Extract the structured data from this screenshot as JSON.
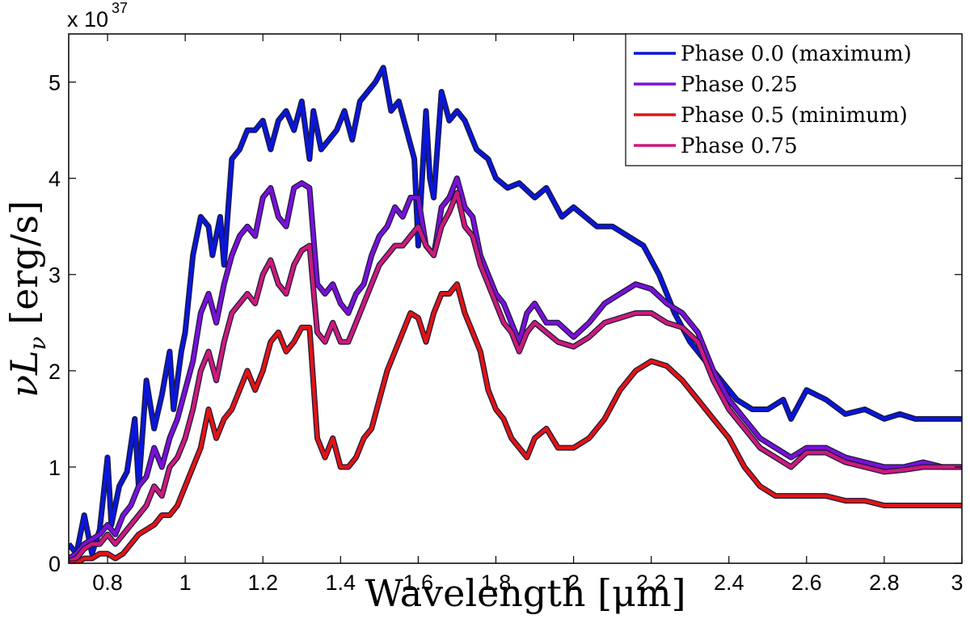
{
  "chart_data": {
    "type": "line",
    "xlabel": "Wavelength [μm]",
    "ylabel": "νL_ν [erg/s]",
    "ylabel_parts": {
      "main": "νL",
      "sub": "ν",
      "unit": "[erg/s]"
    },
    "xlim": [
      0.7,
      3.0
    ],
    "ylim": [
      0,
      5.5
    ],
    "y_multiplier": {
      "base": "x 10",
      "exponent": "37"
    },
    "xticks": [
      0.8,
      1,
      1.2,
      1.4,
      1.6,
      1.8,
      2,
      2.2,
      2.4,
      2.6,
      2.8,
      3
    ],
    "xtick_labels": [
      "0.8",
      "1",
      "1.2",
      "1.4",
      "1.6",
      "1.8",
      "2",
      "2.2",
      "2.4",
      "2.6",
      "2.8",
      "3"
    ],
    "yticks": [
      0,
      1,
      2,
      3,
      4,
      5
    ],
    "ytick_labels": [
      "0",
      "1",
      "2",
      "3",
      "4",
      "5"
    ],
    "grid": false,
    "legend_position": "top-right",
    "series": [
      {
        "name": "Phase 0.0 (maximum)",
        "color": "#0a16d8",
        "x": [
          0.7,
          0.72,
          0.74,
          0.76,
          0.78,
          0.8,
          0.81,
          0.83,
          0.85,
          0.87,
          0.88,
          0.9,
          0.92,
          0.94,
          0.96,
          0.97,
          0.99,
          1.0,
          1.02,
          1.04,
          1.06,
          1.07,
          1.09,
          1.1,
          1.12,
          1.14,
          1.16,
          1.18,
          1.2,
          1.22,
          1.24,
          1.26,
          1.28,
          1.3,
          1.32,
          1.33,
          1.35,
          1.37,
          1.39,
          1.41,
          1.43,
          1.45,
          1.47,
          1.49,
          1.51,
          1.53,
          1.55,
          1.57,
          1.59,
          1.6,
          1.62,
          1.63,
          1.64,
          1.66,
          1.68,
          1.7,
          1.72,
          1.75,
          1.78,
          1.8,
          1.83,
          1.86,
          1.9,
          1.93,
          1.97,
          2.0,
          2.03,
          2.06,
          2.1,
          2.14,
          2.18,
          2.22,
          2.26,
          2.3,
          2.34,
          2.38,
          2.42,
          2.46,
          2.5,
          2.54,
          2.56,
          2.6,
          2.65,
          2.7,
          2.75,
          2.8,
          2.84,
          2.88,
          2.92,
          2.96,
          3.0
        ],
        "y": [
          0.2,
          0.1,
          0.5,
          0.1,
          0.35,
          1.1,
          0.4,
          0.8,
          0.95,
          1.5,
          0.8,
          1.9,
          1.4,
          1.75,
          2.2,
          1.6,
          2.2,
          2.4,
          3.2,
          3.6,
          3.5,
          3.2,
          3.6,
          3.1,
          4.2,
          4.3,
          4.5,
          4.5,
          4.6,
          4.3,
          4.6,
          4.7,
          4.5,
          4.8,
          4.2,
          4.7,
          4.3,
          4.4,
          4.5,
          4.7,
          4.4,
          4.8,
          4.9,
          5.0,
          5.15,
          4.7,
          4.8,
          4.5,
          4.2,
          3.3,
          4.7,
          4.0,
          3.8,
          4.9,
          4.6,
          4.7,
          4.6,
          4.3,
          4.2,
          4.0,
          3.9,
          3.95,
          3.8,
          3.9,
          3.6,
          3.7,
          3.6,
          3.5,
          3.5,
          3.4,
          3.3,
          3.0,
          2.6,
          2.3,
          2.1,
          1.9,
          1.7,
          1.6,
          1.6,
          1.7,
          1.5,
          1.8,
          1.7,
          1.55,
          1.6,
          1.5,
          1.55,
          1.5,
          1.5,
          1.5,
          1.5
        ]
      },
      {
        "name": "Phase 0.25",
        "color": "#7a10d8",
        "x": [
          0.7,
          0.72,
          0.74,
          0.76,
          0.78,
          0.8,
          0.82,
          0.84,
          0.86,
          0.88,
          0.9,
          0.92,
          0.94,
          0.96,
          0.98,
          1.0,
          1.02,
          1.04,
          1.06,
          1.08,
          1.1,
          1.12,
          1.14,
          1.16,
          1.18,
          1.2,
          1.22,
          1.24,
          1.26,
          1.28,
          1.3,
          1.32,
          1.34,
          1.36,
          1.38,
          1.4,
          1.42,
          1.44,
          1.46,
          1.48,
          1.5,
          1.52,
          1.54,
          1.56,
          1.58,
          1.6,
          1.62,
          1.64,
          1.66,
          1.68,
          1.7,
          1.72,
          1.74,
          1.76,
          1.78,
          1.8,
          1.82,
          1.84,
          1.86,
          1.88,
          1.9,
          1.93,
          1.96,
          2.0,
          2.04,
          2.08,
          2.12,
          2.16,
          2.2,
          2.24,
          2.28,
          2.32,
          2.36,
          2.4,
          2.44,
          2.48,
          2.52,
          2.56,
          2.6,
          2.65,
          2.7,
          2.75,
          2.8,
          2.85,
          2.9,
          2.95,
          3.0
        ],
        "y": [
          0.05,
          0.1,
          0.2,
          0.25,
          0.3,
          0.4,
          0.3,
          0.5,
          0.6,
          0.8,
          0.9,
          1.2,
          1.0,
          1.3,
          1.5,
          1.8,
          2.1,
          2.6,
          2.8,
          2.5,
          2.9,
          3.2,
          3.4,
          3.5,
          3.4,
          3.8,
          3.9,
          3.6,
          3.5,
          3.9,
          3.95,
          3.9,
          2.9,
          2.8,
          2.9,
          2.7,
          2.6,
          2.8,
          2.9,
          3.2,
          3.4,
          3.5,
          3.7,
          3.6,
          3.8,
          3.8,
          3.3,
          3.2,
          3.7,
          3.8,
          4.0,
          3.7,
          3.6,
          3.2,
          3.0,
          2.8,
          2.7,
          2.5,
          2.3,
          2.6,
          2.7,
          2.5,
          2.5,
          2.35,
          2.5,
          2.7,
          2.8,
          2.9,
          2.85,
          2.7,
          2.6,
          2.4,
          2.0,
          1.7,
          1.5,
          1.3,
          1.2,
          1.1,
          1.2,
          1.2,
          1.1,
          1.05,
          1.0,
          1.0,
          1.05,
          1.0,
          1.0
        ]
      },
      {
        "name": "Phase 0.5 (minimum)",
        "color": "#e01414",
        "x": [
          0.7,
          0.72,
          0.74,
          0.76,
          0.78,
          0.8,
          0.82,
          0.84,
          0.86,
          0.88,
          0.9,
          0.92,
          0.94,
          0.96,
          0.98,
          1.0,
          1.02,
          1.04,
          1.06,
          1.08,
          1.1,
          1.12,
          1.14,
          1.16,
          1.18,
          1.2,
          1.22,
          1.24,
          1.26,
          1.28,
          1.3,
          1.32,
          1.34,
          1.36,
          1.38,
          1.4,
          1.42,
          1.44,
          1.46,
          1.48,
          1.5,
          1.52,
          1.54,
          1.56,
          1.58,
          1.6,
          1.62,
          1.64,
          1.66,
          1.68,
          1.7,
          1.72,
          1.74,
          1.76,
          1.78,
          1.8,
          1.82,
          1.84,
          1.86,
          1.88,
          1.9,
          1.93,
          1.96,
          2.0,
          2.04,
          2.08,
          2.12,
          2.16,
          2.2,
          2.24,
          2.28,
          2.32,
          2.36,
          2.4,
          2.44,
          2.48,
          2.52,
          2.56,
          2.6,
          2.65,
          2.7,
          2.75,
          2.8,
          2.85,
          2.9,
          2.95,
          3.0
        ],
        "y": [
          0.0,
          0.0,
          0.05,
          0.05,
          0.1,
          0.1,
          0.05,
          0.1,
          0.2,
          0.3,
          0.35,
          0.4,
          0.5,
          0.5,
          0.6,
          0.8,
          1.0,
          1.2,
          1.6,
          1.3,
          1.5,
          1.6,
          1.8,
          2.0,
          1.8,
          2.0,
          2.3,
          2.4,
          2.2,
          2.3,
          2.45,
          2.45,
          1.3,
          1.1,
          1.3,
          1.0,
          1.0,
          1.1,
          1.3,
          1.4,
          1.7,
          2.0,
          2.2,
          2.4,
          2.6,
          2.55,
          2.3,
          2.6,
          2.8,
          2.8,
          2.9,
          2.6,
          2.4,
          2.2,
          1.8,
          1.6,
          1.5,
          1.3,
          1.2,
          1.1,
          1.3,
          1.4,
          1.2,
          1.2,
          1.3,
          1.5,
          1.8,
          2.0,
          2.1,
          2.05,
          1.9,
          1.7,
          1.5,
          1.3,
          1.0,
          0.8,
          0.7,
          0.7,
          0.7,
          0.7,
          0.65,
          0.65,
          0.6,
          0.6,
          0.6,
          0.6,
          0.6
        ]
      },
      {
        "name": "Phase 0.75",
        "color": "#cc1a7a",
        "x": [
          0.7,
          0.72,
          0.74,
          0.76,
          0.78,
          0.8,
          0.82,
          0.84,
          0.86,
          0.88,
          0.9,
          0.92,
          0.94,
          0.96,
          0.98,
          1.0,
          1.02,
          1.04,
          1.06,
          1.08,
          1.1,
          1.12,
          1.14,
          1.16,
          1.18,
          1.2,
          1.22,
          1.24,
          1.26,
          1.28,
          1.3,
          1.32,
          1.34,
          1.36,
          1.38,
          1.4,
          1.42,
          1.44,
          1.46,
          1.48,
          1.5,
          1.52,
          1.54,
          1.56,
          1.58,
          1.6,
          1.62,
          1.64,
          1.66,
          1.68,
          1.7,
          1.72,
          1.74,
          1.76,
          1.78,
          1.8,
          1.82,
          1.84,
          1.86,
          1.88,
          1.9,
          1.93,
          1.96,
          2.0,
          2.04,
          2.08,
          2.12,
          2.16,
          2.2,
          2.24,
          2.28,
          2.32,
          2.36,
          2.4,
          2.44,
          2.48,
          2.52,
          2.56,
          2.6,
          2.65,
          2.7,
          2.75,
          2.8,
          2.85,
          2.9,
          2.95,
          3.0
        ],
        "y": [
          0.02,
          0.05,
          0.15,
          0.2,
          0.2,
          0.3,
          0.2,
          0.3,
          0.4,
          0.5,
          0.6,
          0.8,
          0.7,
          1.0,
          1.1,
          1.3,
          1.6,
          2.0,
          2.2,
          1.9,
          2.3,
          2.6,
          2.7,
          2.8,
          2.7,
          3.0,
          3.15,
          2.9,
          2.8,
          3.1,
          3.25,
          3.3,
          2.4,
          2.3,
          2.5,
          2.3,
          2.3,
          2.5,
          2.7,
          2.9,
          3.1,
          3.2,
          3.3,
          3.3,
          3.4,
          3.5,
          3.3,
          3.2,
          3.5,
          3.65,
          3.85,
          3.5,
          3.4,
          3.1,
          2.9,
          2.7,
          2.5,
          2.4,
          2.2,
          2.4,
          2.5,
          2.4,
          2.3,
          2.25,
          2.35,
          2.5,
          2.55,
          2.6,
          2.6,
          2.5,
          2.45,
          2.3,
          1.9,
          1.6,
          1.4,
          1.2,
          1.1,
          1.0,
          1.15,
          1.15,
          1.05,
          1.0,
          0.95,
          0.97,
          1.0,
          1.0,
          1.0
        ]
      }
    ]
  }
}
